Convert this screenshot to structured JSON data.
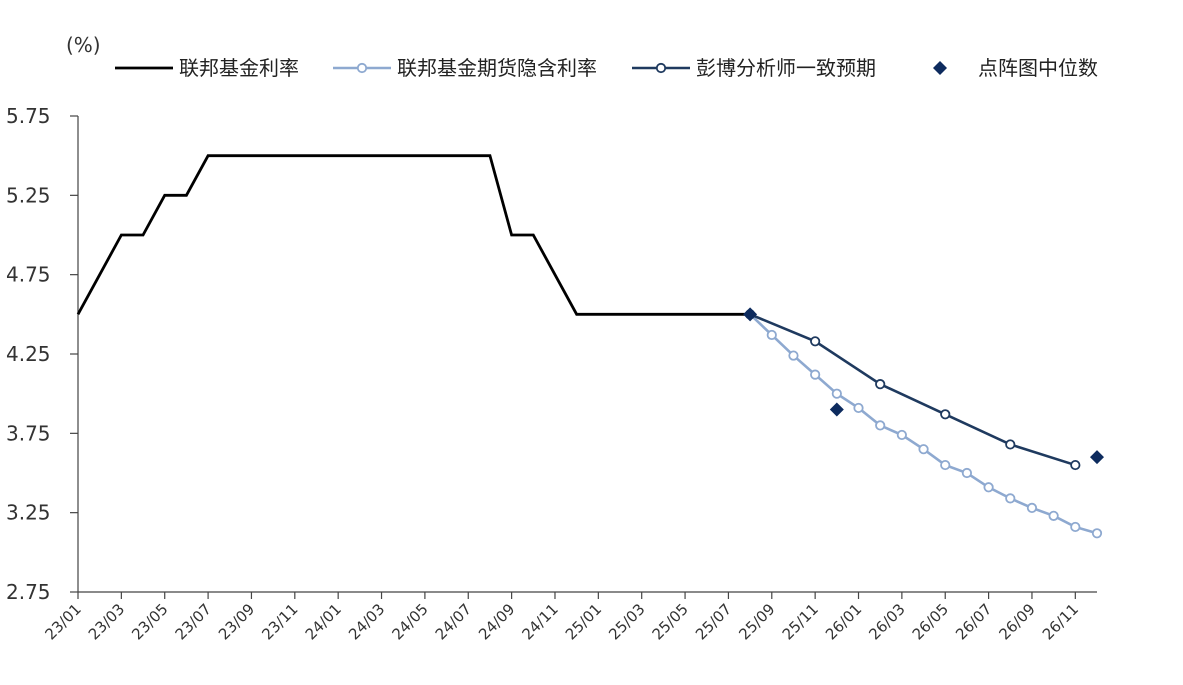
{
  "chart_data": {
    "type": "line",
    "unit_label": "(%)",
    "ylim": [
      2.75,
      5.75
    ],
    "yticks": [
      "5.75",
      "5.25",
      "4.75",
      "4.25",
      "3.75",
      "3.25",
      "2.75"
    ],
    "x_start": "23/01",
    "x_end": "26/12",
    "x_tick_labels": [
      "23/01",
      "23/03",
      "23/05",
      "23/07",
      "23/09",
      "23/11",
      "24/01",
      "24/03",
      "24/05",
      "24/07",
      "24/09",
      "24/11",
      "25/01",
      "25/03",
      "25/05",
      "25/07",
      "25/09",
      "25/11",
      "26/01",
      "26/03",
      "26/05",
      "26/07",
      "26/09",
      "26/11"
    ],
    "grid": false,
    "legend_position": "top",
    "series": [
      {
        "name": "联邦基金利率",
        "color": "#000000",
        "style": "line",
        "points": [
          [
            "23/01",
            4.5
          ],
          [
            "23/02",
            4.75
          ],
          [
            "23/03",
            5.0
          ],
          [
            "23/04",
            5.0
          ],
          [
            "23/05",
            5.25
          ],
          [
            "23/06",
            5.25
          ],
          [
            "23/07",
            5.5
          ],
          [
            "24/08",
            5.5
          ],
          [
            "24/09",
            5.0
          ],
          [
            "24/10",
            5.0
          ],
          [
            "24/11",
            4.75
          ],
          [
            "24/12",
            4.5
          ],
          [
            "25/08",
            4.5
          ]
        ]
      },
      {
        "name": "联邦基金期货隐含利率",
        "color": "#8EA9D0",
        "style": "line-hollow-markers",
        "points": [
          [
            "25/08",
            4.5
          ],
          [
            "25/09",
            4.37
          ],
          [
            "25/10",
            4.24
          ],
          [
            "25/11",
            4.12
          ],
          [
            "25/12",
            4.0
          ],
          [
            "26/01",
            3.91
          ],
          [
            "26/02",
            3.8
          ],
          [
            "26/03",
            3.74
          ],
          [
            "26/04",
            3.65
          ],
          [
            "26/05",
            3.55
          ],
          [
            "26/06",
            3.5
          ],
          [
            "26/07",
            3.41
          ],
          [
            "26/08",
            3.34
          ],
          [
            "26/09",
            3.28
          ],
          [
            "26/10",
            3.23
          ],
          [
            "26/11",
            3.16
          ],
          [
            "26/12",
            3.12
          ]
        ]
      },
      {
        "name": "彭博分析师一致预期",
        "color": "#1F3A5F",
        "style": "line-hollow-markers",
        "points": [
          [
            "25/08",
            4.5
          ],
          [
            "25/11",
            4.33
          ],
          [
            "26/02",
            4.06
          ],
          [
            "26/05",
            3.87
          ],
          [
            "26/08",
            3.68
          ],
          [
            "26/11",
            3.55
          ]
        ]
      },
      {
        "name": "点阵图中位数",
        "color": "#0D2B5E",
        "style": "diamond-markers",
        "points": [
          [
            "25/08",
            4.5
          ],
          [
            "25/12",
            3.9
          ],
          [
            "26/12",
            3.6
          ]
        ]
      }
    ]
  }
}
